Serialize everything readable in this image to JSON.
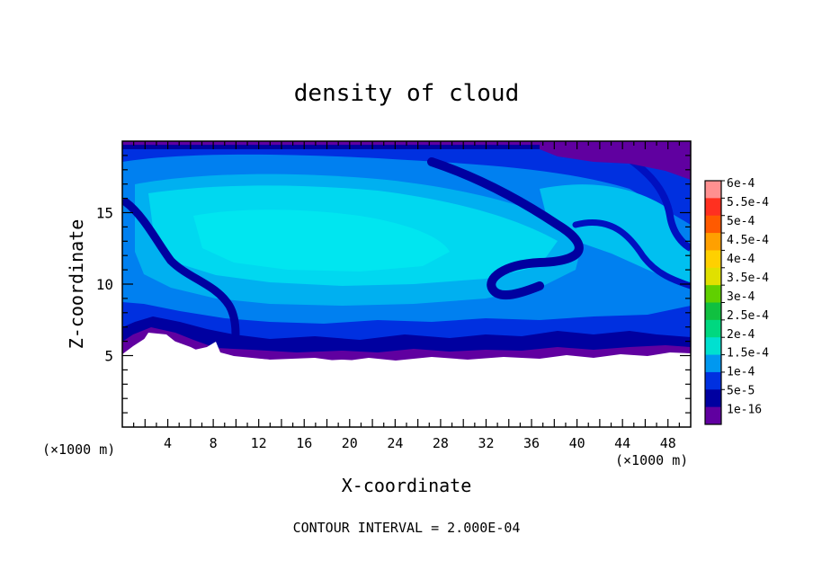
{
  "chart_data": {
    "type": "heatmap",
    "title": "density of cloud",
    "xlabel": "X-coordinate",
    "ylabel": "Z-coordinate",
    "x_unit_left": "(×1000 m)",
    "x_unit_right": "(×1000 m)",
    "xlim": [
      0,
      50
    ],
    "ylim": [
      0,
      20
    ],
    "x_ticks": [
      4,
      8,
      12,
      16,
      20,
      24,
      28,
      32,
      36,
      40,
      44,
      48
    ],
    "y_ticks": [
      5,
      10,
      15
    ],
    "footer": "CONTOUR INTERVAL = 2.000E-04",
    "colorbar": {
      "labels": [
        "6e-4",
        "5.5e-4",
        "5e-4",
        "4.5e-4",
        "4e-4",
        "3.5e-4",
        "3e-4",
        "2.5e-4",
        "2e-4",
        "1.5e-4",
        "1e-4",
        "5e-5",
        "1e-16"
      ],
      "colors": [
        "#ff9090",
        "#ff3020",
        "#ff5a00",
        "#ffa000",
        "#ffd000",
        "#e0e000",
        "#60d000",
        "#10c040",
        "#00d880",
        "#00e0d0",
        "#0098f0",
        "#0030e0",
        "#0000a0",
        "#6000a0"
      ]
    },
    "field_colors": {
      "purple": "#6000a0",
      "navy": "#0000a0",
      "blue": "#0030e0",
      "azure": "#0080f0",
      "sky": "#00b0f0",
      "cyan": "#00d8f0",
      "aqua": "#00e8f0"
    }
  }
}
